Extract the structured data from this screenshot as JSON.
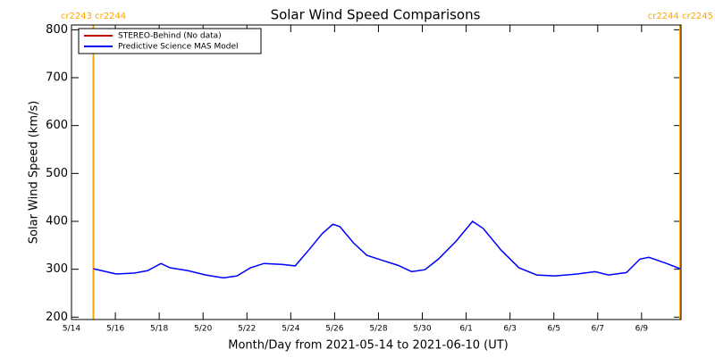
{
  "chart_data": {
    "type": "line",
    "title": "Solar Wind Speed Comparisons",
    "x_label": "Month/Day from 2021-05-14 to 2021-06-10 (UT)",
    "y_label": "Solar Wind Speed (km/s)",
    "xlim": [
      0,
      27.8
    ],
    "ylim": [
      195,
      810
    ],
    "xticks": [
      {
        "value": 0,
        "label": "5/14"
      },
      {
        "value": 2,
        "label": "5/16"
      },
      {
        "value": 4,
        "label": "5/18"
      },
      {
        "value": 6,
        "label": "5/20"
      },
      {
        "value": 8,
        "label": "5/22"
      },
      {
        "value": 10,
        "label": "5/24"
      },
      {
        "value": 12,
        "label": "5/26"
      },
      {
        "value": 14,
        "label": "5/28"
      },
      {
        "value": 16,
        "label": "5/30"
      },
      {
        "value": 18,
        "label": "6/1"
      },
      {
        "value": 20,
        "label": "6/3"
      },
      {
        "value": 22,
        "label": "6/5"
      },
      {
        "value": 24,
        "label": "6/7"
      },
      {
        "value": 26,
        "label": "6/9"
      }
    ],
    "yticks": [
      200,
      300,
      400,
      500,
      600,
      700,
      800
    ],
    "legend": "top-left",
    "series": [
      {
        "name": "STEREO-Behind (No data)",
        "color": "#c00000",
        "x": [],
        "values": []
      },
      {
        "name": "Predictive Science MAS Model",
        "color": "#0000ff",
        "x": [
          1.0,
          2.04,
          2.86,
          3.47,
          4.08,
          4.49,
          5.31,
          6.12,
          6.94,
          7.55,
          8.16,
          8.78,
          9.59,
          10.2,
          10.82,
          11.43,
          11.92,
          12.24,
          12.86,
          13.47,
          14.08,
          14.9,
          15.51,
          16.12,
          16.73,
          17.55,
          18.29,
          18.78,
          19.59,
          20.41,
          21.22,
          22.04,
          23.06,
          23.88,
          24.49,
          25.31,
          25.92,
          26.33,
          27.14,
          27.76
        ],
        "values": [
          301,
          290,
          292,
          297,
          312,
          303,
          297,
          288,
          282,
          286,
          303,
          312,
          310,
          307,
          340,
          374,
          394,
          389,
          355,
          329,
          320,
          308,
          295,
          299,
          321,
          359,
          400,
          385,
          340,
          303,
          288,
          286,
          290,
          295,
          288,
          293,
          321,
          325,
          312,
          301
        ]
      }
    ],
    "annotations": [
      {
        "x": 1.0,
        "label": "cr2243 cr2244"
      },
      {
        "x": 27.76,
        "label": "cr2244 cr2245"
      }
    ],
    "annotation_color": "#ffa500"
  }
}
